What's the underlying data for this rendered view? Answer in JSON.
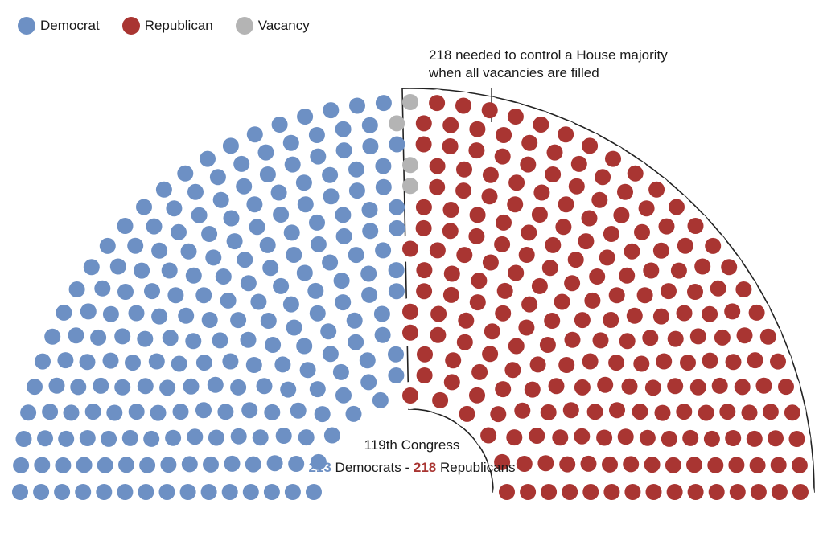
{
  "legend": [
    {
      "label": "Democrat",
      "color": "#6d90c4"
    },
    {
      "label": "Republican",
      "color": "#a93532"
    },
    {
      "label": "Vacancy",
      "color": "#b4b4b4"
    }
  ],
  "annotation": {
    "line1": "218 needed to control a House majority",
    "line2": "when all vacancies are filled"
  },
  "summary": {
    "title": "119th Congress",
    "dem_count": "213",
    "dem_label": "Democrats",
    "separator": "-",
    "rep_count": "218",
    "rep_label": "Republicans"
  },
  "chart_data": {
    "type": "parliament",
    "title": "119th Congress",
    "series": [
      {
        "name": "Democrat",
        "value": 213,
        "color": "#6d90c4"
      },
      {
        "name": "Vacancy",
        "value": 4,
        "color": "#b4b4b4"
      },
      {
        "name": "Republican",
        "value": 218,
        "color": "#a93532"
      }
    ],
    "total": 435,
    "majority_threshold": 218
  }
}
